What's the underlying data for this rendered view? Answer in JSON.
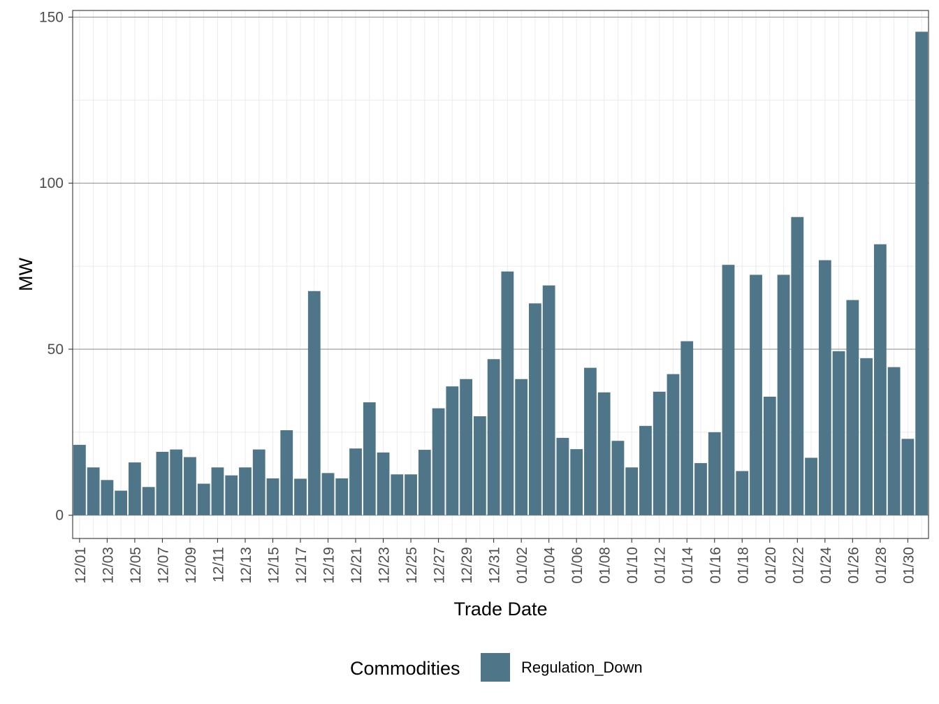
{
  "chart_data": {
    "type": "bar",
    "xlabel": "Trade Date",
    "ylabel": "MW",
    "ylim": [
      -7,
      152
    ],
    "yticks": [
      0,
      50,
      100,
      150
    ],
    "grid": true,
    "legend_position": "bottom",
    "bar_color": "#4f7588",
    "categories": [
      "12/01",
      "12/02",
      "12/03",
      "12/04",
      "12/05",
      "12/06",
      "12/07",
      "12/08",
      "12/09",
      "12/10",
      "12/11",
      "12/12",
      "12/13",
      "12/14",
      "12/15",
      "12/16",
      "12/17",
      "12/18",
      "12/19",
      "12/20",
      "12/21",
      "12/22",
      "12/23",
      "12/24",
      "12/25",
      "12/26",
      "12/27",
      "12/28",
      "12/29",
      "12/30",
      "12/31",
      "01/01",
      "01/02",
      "01/03",
      "01/04",
      "01/05",
      "01/06",
      "01/07",
      "01/08",
      "01/09",
      "01/10",
      "01/11",
      "01/12",
      "01/13",
      "01/14",
      "01/15",
      "01/16",
      "01/17",
      "01/18",
      "01/19",
      "01/20",
      "01/21",
      "01/22",
      "01/23",
      "01/24",
      "01/25",
      "01/26",
      "01/27",
      "01/28",
      "01/29",
      "01/30",
      "01/31"
    ],
    "tick_labels": [
      "12/01",
      "12/03",
      "12/05",
      "12/07",
      "12/09",
      "12/11",
      "12/13",
      "12/15",
      "12/17",
      "12/19",
      "12/21",
      "12/23",
      "12/25",
      "12/27",
      "12/29",
      "12/31",
      "01/02",
      "01/04",
      "01/06",
      "01/08",
      "01/10",
      "01/12",
      "01/14",
      "01/16",
      "01/18",
      "01/20",
      "01/22",
      "01/24",
      "01/26",
      "01/28",
      "01/30"
    ],
    "series": [
      {
        "name": "Regulation_Down",
        "values": [
          21.2,
          14.4,
          10.6,
          7.4,
          15.9,
          8.5,
          19.1,
          19.8,
          17.5,
          9.5,
          14.4,
          12.0,
          14.4,
          19.8,
          11.1,
          25.6,
          11.0,
          67.5,
          12.7,
          11.1,
          20.1,
          34.0,
          18.9,
          12.3,
          12.3,
          19.7,
          32.2,
          38.8,
          41.0,
          29.8,
          47.0,
          73.4,
          41.0,
          63.8,
          69.2,
          23.3,
          19.9,
          44.4,
          37.0,
          22.4,
          14.4,
          26.9,
          37.2,
          42.5,
          52.4,
          15.7,
          25.0,
          75.4,
          13.3,
          72.4,
          35.7,
          72.4,
          89.8,
          17.3,
          76.8,
          49.4,
          64.8,
          47.3,
          81.6,
          44.6,
          23.0,
          145.6
        ]
      }
    ]
  },
  "legend": {
    "title": "Commodities",
    "items": [
      {
        "label": "Regulation_Down",
        "color": "#4f7588"
      }
    ]
  }
}
